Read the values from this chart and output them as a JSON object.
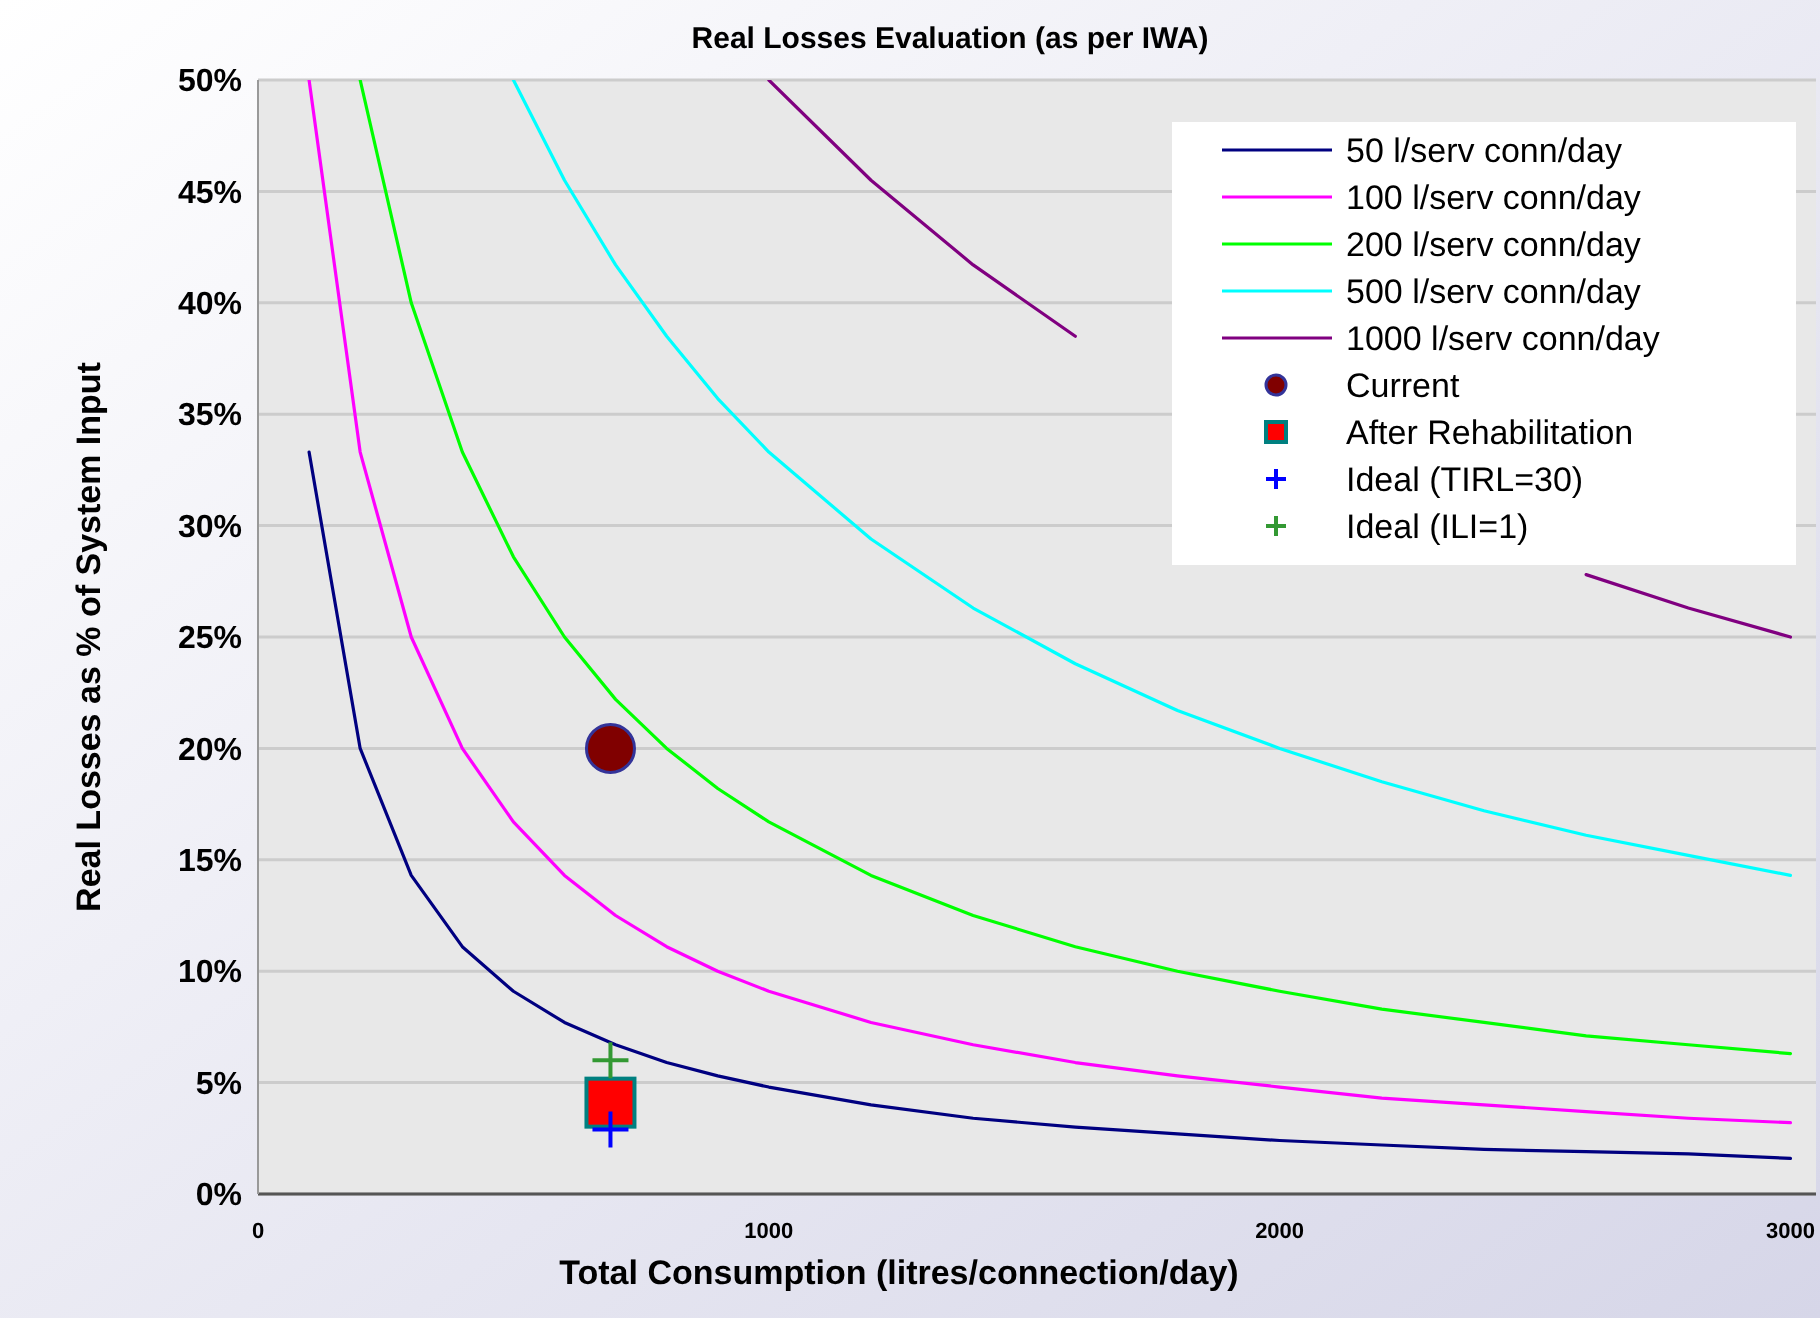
{
  "chart_data": {
    "type": "line",
    "title": "Real Losses Evaluation (as per IWA)",
    "xlabel": "Total Consumption (litres/connection/day)",
    "ylabel": "Real Losses as % of System Input",
    "xlim": [
      0,
      3050
    ],
    "xticks": [
      0,
      1000,
      2000,
      3000
    ],
    "ylim": [
      0,
      50
    ],
    "yticks": [
      {
        "value": 0,
        "label": "0%"
      },
      {
        "value": 5,
        "label": "5%"
      },
      {
        "value": 10,
        "label": "10%"
      },
      {
        "value": 15,
        "label": "15%"
      },
      {
        "value": 20,
        "label": "20%"
      },
      {
        "value": 25,
        "label": "25%"
      },
      {
        "value": 30,
        "label": "30%"
      },
      {
        "value": 35,
        "label": "35%"
      },
      {
        "value": 40,
        "label": "40%"
      },
      {
        "value": 45,
        "label": "45%"
      },
      {
        "value": 50,
        "label": "50%"
      }
    ],
    "grid": "y",
    "legend": "top right",
    "marker": "none",
    "series": [
      {
        "name": "50 l/serv conn/day",
        "color": "#000080",
        "x": [
          100,
          200,
          300,
          400,
          500,
          600,
          700,
          800,
          900,
          1000,
          1200,
          1400,
          1600,
          1800,
          2000,
          2200,
          2400,
          2600,
          2800,
          3000
        ],
        "values": [
          33.3,
          20.0,
          14.3,
          11.1,
          9.1,
          7.7,
          6.7,
          5.9,
          5.3,
          4.8,
          4.0,
          3.4,
          3.0,
          2.7,
          2.4,
          2.2,
          2.0,
          1.9,
          1.8,
          1.6
        ]
      },
      {
        "name": "100 l/serv conn/day",
        "color": "#ff00ff",
        "x": [
          100,
          200,
          300,
          400,
          500,
          600,
          700,
          800,
          900,
          1000,
          1200,
          1400,
          1600,
          1800,
          2000,
          2200,
          2400,
          2600,
          2800,
          3000
        ],
        "values": [
          50.0,
          33.3,
          25.0,
          20.0,
          16.7,
          14.3,
          12.5,
          11.1,
          10.0,
          9.1,
          7.7,
          6.7,
          5.9,
          5.3,
          4.8,
          4.3,
          4.0,
          3.7,
          3.4,
          3.2
        ]
      },
      {
        "name": "200 l/serv conn/day",
        "color": "#00ff00",
        "x": [
          200,
          300,
          400,
          500,
          600,
          700,
          800,
          900,
          1000,
          1200,
          1400,
          1600,
          1800,
          2000,
          2200,
          2400,
          2600,
          2800,
          3000
        ],
        "values": [
          50.0,
          40.0,
          33.3,
          28.6,
          25.0,
          22.2,
          20.0,
          18.2,
          16.7,
          14.3,
          12.5,
          11.1,
          10.0,
          9.1,
          8.3,
          7.7,
          7.1,
          6.7,
          6.3
        ]
      },
      {
        "name": "500 l/serv conn/day",
        "color": "#00ffff",
        "x": [
          500,
          600,
          700,
          800,
          900,
          1000,
          1200,
          1400,
          1600,
          1800,
          2000,
          2200,
          2400,
          2600,
          2800,
          3000
        ],
        "values": [
          50.0,
          45.5,
          41.7,
          38.5,
          35.7,
          33.3,
          29.4,
          26.3,
          23.8,
          21.7,
          20.0,
          18.5,
          17.2,
          16.1,
          15.2,
          14.3
        ]
      },
      {
        "name": "1000 l/serv conn/day",
        "color": "#800080",
        "x": [
          1000,
          1200,
          1400,
          1600,
          1800,
          2000,
          2200,
          2400,
          2600,
          2800,
          3000
        ],
        "values": [
          50.0,
          45.5,
          41.7,
          38.5,
          null,
          null,
          null,
          null,
          27.8,
          26.3,
          25.0
        ]
      },
      {
        "name": "Current",
        "type": "scatter",
        "marker": "circle",
        "color": "#800000",
        "x": [
          690
        ],
        "values": [
          20.0
        ]
      },
      {
        "name": "After Rehabilitation",
        "type": "scatter",
        "marker": "square",
        "color": "#ff0000",
        "x": [
          690
        ],
        "values": [
          4.1
        ]
      },
      {
        "name": "Ideal (TIRL=30)",
        "type": "scatter",
        "marker": "cross",
        "color": "#0000ff",
        "x": [
          690
        ],
        "values": [
          2.9
        ]
      },
      {
        "name": "Ideal (ILI=1)",
        "type": "scatter",
        "marker": "cross",
        "color": "#339933",
        "x": [
          690
        ],
        "values": [
          6.0
        ]
      }
    ]
  }
}
